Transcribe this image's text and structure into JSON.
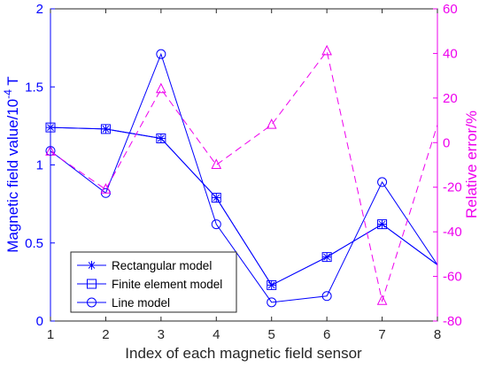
{
  "chart_data": {
    "type": "line",
    "title": "",
    "xlabel": "Index of each magnetic field sensor",
    "ylabel_left_main": "Magnetic field value/10",
    "ylabel_left_exp": "-4",
    "ylabel_left_unit": " T",
    "ylabel_right": "Relative error/%",
    "x": [
      1,
      2,
      3,
      4,
      5,
      6,
      7,
      8
    ],
    "xlim": [
      1,
      8
    ],
    "ylim_left": [
      0,
      2
    ],
    "ylim_right": [
      -80,
      60
    ],
    "xticks": [
      "1",
      "2",
      "3",
      "4",
      "5",
      "6",
      "7",
      "8"
    ],
    "yticks_left": [
      "0",
      "0.5",
      "1",
      "1.5",
      "2"
    ],
    "yticks_right": [
      "-80",
      "-60",
      "-40",
      "-20",
      "0",
      "20",
      "40",
      "60"
    ],
    "left_color": "#0000ff",
    "right_color": "#ee00ee",
    "series": [
      {
        "name": "Rectangular model",
        "axis": "left",
        "marker": "star",
        "values": [
          1.24,
          1.23,
          1.17,
          0.79,
          0.23,
          0.41,
          0.62,
          0.36
        ]
      },
      {
        "name": "Finite element model",
        "axis": "left",
        "marker": "square",
        "values": [
          1.24,
          1.23,
          1.17,
          0.79,
          0.23,
          0.41,
          0.62,
          0.36
        ]
      },
      {
        "name": "Line model",
        "axis": "left",
        "marker": "circle",
        "values": [
          1.09,
          0.82,
          1.71,
          0.62,
          0.12,
          0.16,
          0.89,
          0.36
        ]
      },
      {
        "axis": "right",
        "marker": "triangle",
        "dashed": true,
        "values": [
          -4,
          -21,
          24,
          -10,
          8,
          41,
          -71,
          8
        ]
      }
    ],
    "legend_position": "bottom-left"
  }
}
